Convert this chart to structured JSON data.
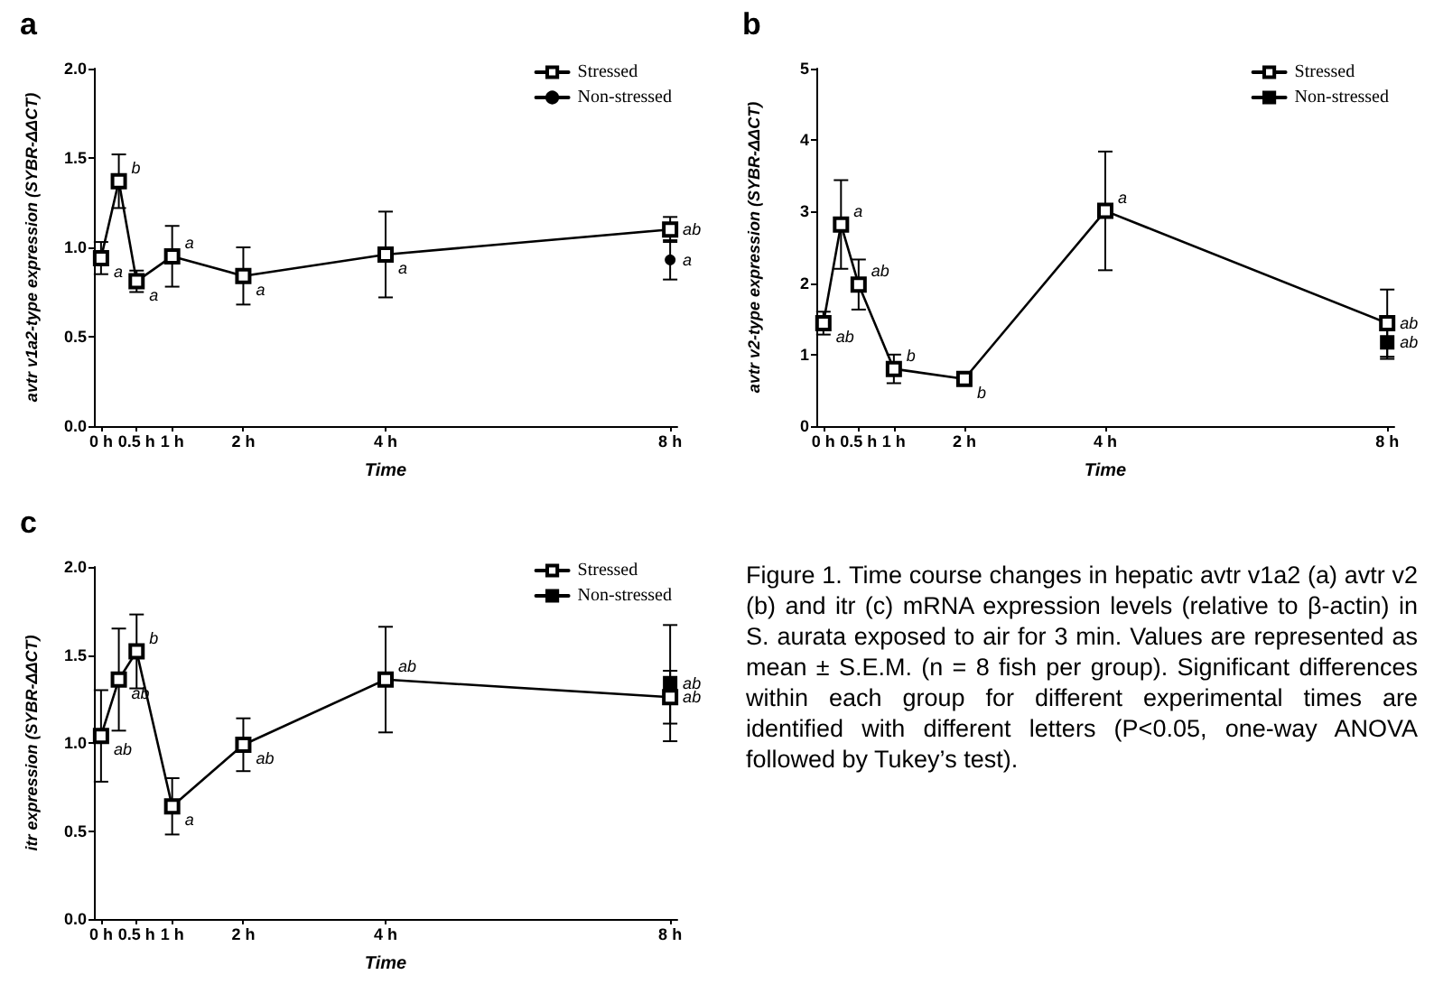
{
  "chart_data": [
    {
      "type": "line",
      "title": "a",
      "xlabel": "Time",
      "ylabel": "avtr v1a2-type expression (SYBR-ΔΔCT)",
      "xlim": [
        -0.1,
        8.1
      ],
      "xticks": [
        {
          "value": 0,
          "label": "0 h"
        },
        {
          "value": 0.5,
          "label": "0.5 h"
        },
        {
          "value": 1,
          "label": "1 h"
        },
        {
          "value": 2,
          "label": "2 h"
        },
        {
          "value": 4,
          "label": "4 h"
        },
        {
          "value": 8,
          "label": "8 h"
        }
      ],
      "ylim": [
        0,
        2
      ],
      "yticks": [
        {
          "value": 0,
          "label": "0.0"
        },
        {
          "value": 0.5,
          "label": "0.5"
        },
        {
          "value": 1,
          "label": "1.0"
        },
        {
          "value": 1.5,
          "label": "1.5"
        },
        {
          "value": 2,
          "label": "2.0"
        }
      ],
      "legend": "top right",
      "grid": false,
      "line_style": "solid",
      "marker": "square",
      "series": [
        {
          "name": "Stressed",
          "color": "#000000",
          "x": [
            0,
            0.25,
            0.5,
            1,
            2,
            4,
            8
          ],
          "values": [
            0.94,
            1.37,
            0.81,
            0.95,
            0.84,
            0.96,
            1.1
          ],
          "errors": [
            0.09,
            0.15,
            0.06,
            0.17,
            0.16,
            0.24,
            0.07
          ]
        },
        {
          "name": "Non-stressed",
          "color": "#000000",
          "marker": "circle",
          "x": [
            8
          ],
          "values": [
            0.93
          ],
          "errors": [
            0.11
          ]
        }
      ],
      "annotations": [
        {
          "text": "a",
          "x": 0,
          "y": 0.94
        },
        {
          "text": "b",
          "x": 0.25,
          "y": 1.37
        },
        {
          "text": "a",
          "x": 0.5,
          "y": 0.81
        },
        {
          "text": "a",
          "x": 1,
          "y": 0.95
        },
        {
          "text": "a",
          "x": 2,
          "y": 0.84
        },
        {
          "text": "a",
          "x": 4,
          "y": 0.96
        },
        {
          "text": "ab",
          "x": 8,
          "y": 1.1
        },
        {
          "text": "a",
          "x": 8,
          "y": 0.93
        }
      ]
    },
    {
      "type": "line",
      "title": "b",
      "xlabel": "Time",
      "ylabel": "avtr v2-type expression (SYBR-ΔΔCT)",
      "xlim": [
        -0.1,
        8.1
      ],
      "xticks": [
        {
          "value": 0,
          "label": "0 h"
        },
        {
          "value": 0.5,
          "label": "0.5 h"
        },
        {
          "value": 1,
          "label": "1 h"
        },
        {
          "value": 2,
          "label": "2 h"
        },
        {
          "value": 4,
          "label": "4 h"
        },
        {
          "value": 8,
          "label": "8 h"
        }
      ],
      "ylim": [
        0,
        5
      ],
      "yticks": [
        0,
        1,
        2,
        3,
        4,
        5
      ],
      "legend": "top right",
      "grid": false,
      "line_style": "solid",
      "marker": "square",
      "series": [
        {
          "name": "Stressed",
          "color": "#000000",
          "x": [
            0,
            0.25,
            0.5,
            1,
            2,
            4,
            8
          ],
          "values": [
            1.44,
            2.82,
            1.98,
            0.8,
            0.66,
            3.01,
            1.44
          ],
          "errors": [
            0.16,
            0.62,
            0.35,
            0.2,
            0.08,
            0.83,
            0.47
          ]
        },
        {
          "name": "Non-stressed",
          "color": "#000000",
          "x": [
            8
          ],
          "values": [
            1.17
          ],
          "errors": [
            0.23
          ]
        }
      ],
      "annotations": [
        {
          "text": "ab",
          "x": 0,
          "y": 1.44
        },
        {
          "text": "a",
          "x": 0.25,
          "y": 2.82
        },
        {
          "text": "ab",
          "x": 0.5,
          "y": 1.98
        },
        {
          "text": "b",
          "x": 1,
          "y": 0.8
        },
        {
          "text": "b",
          "x": 2,
          "y": 0.66
        },
        {
          "text": "a",
          "x": 4,
          "y": 3.01
        },
        {
          "text": "ab",
          "x": 8,
          "y": 1.44
        },
        {
          "text": "ab",
          "x": 8,
          "y": 1.17
        }
      ]
    },
    {
      "type": "line",
      "title": "c",
      "xlabel": "Time",
      "ylabel": "itr expression (SYBR-ΔΔCT)",
      "xlim": [
        -0.1,
        8.1
      ],
      "xticks": [
        {
          "value": 0,
          "label": "0 h"
        },
        {
          "value": 0.5,
          "label": "0.5 h"
        },
        {
          "value": 1,
          "label": "1 h"
        },
        {
          "value": 2,
          "label": "2 h"
        },
        {
          "value": 4,
          "label": "4 h"
        },
        {
          "value": 8,
          "label": "8 h"
        }
      ],
      "ylim": [
        0,
        2
      ],
      "yticks": [
        {
          "value": 0,
          "label": "0.0"
        },
        {
          "value": 0.5,
          "label": "0.5"
        },
        {
          "value": 1,
          "label": "1.0"
        },
        {
          "value": 1.5,
          "label": "1.5"
        },
        {
          "value": 2,
          "label": "2.0"
        }
      ],
      "legend": "top right",
      "grid": false,
      "line_style": "solid",
      "marker": "square",
      "series": [
        {
          "name": "Stressed",
          "color": "#000000",
          "x": [
            0,
            0.25,
            0.5,
            1,
            2,
            4,
            8
          ],
          "values": [
            1.04,
            1.36,
            1.52,
            0.64,
            0.99,
            1.36,
            1.26
          ],
          "errors": [
            0.26,
            0.29,
            0.21,
            0.16,
            0.15,
            0.3,
            0.15
          ]
        },
        {
          "name": "Non-stressed",
          "color": "#000000",
          "x": [
            8
          ],
          "values": [
            1.34
          ],
          "errors": [
            0.33
          ]
        }
      ],
      "annotations": [
        {
          "text": "ab",
          "x": 0,
          "y": 1.04
        },
        {
          "text": "ab",
          "x": 0.25,
          "y": 1.36
        },
        {
          "text": "b",
          "x": 0.5,
          "y": 1.52
        },
        {
          "text": "a",
          "x": 1,
          "y": 0.64
        },
        {
          "text": "ab",
          "x": 2,
          "y": 0.99
        },
        {
          "text": "ab",
          "x": 4,
          "y": 1.36
        },
        {
          "text": "ab",
          "x": 8,
          "y": 1.26
        },
        {
          "text": "ab",
          "x": 8,
          "y": 1.34
        }
      ]
    },
    {
      "type": "other",
      "annotations": [
        "Figure 1. Time course changes in hepatic avtr v1a2 (a) avtr v2 (b) and itr (c) mRNA expression levels (relative to β-actin) in S. aurata exposed to air for 3 min. Values are represented as mean ± S.E.M. (n = 8 fish per group). Significant differences within each group for different experimental times are identified with different letters (P<0.05, one-way ANOVA followed by Tukey’s test)."
      ]
    }
  ]
}
